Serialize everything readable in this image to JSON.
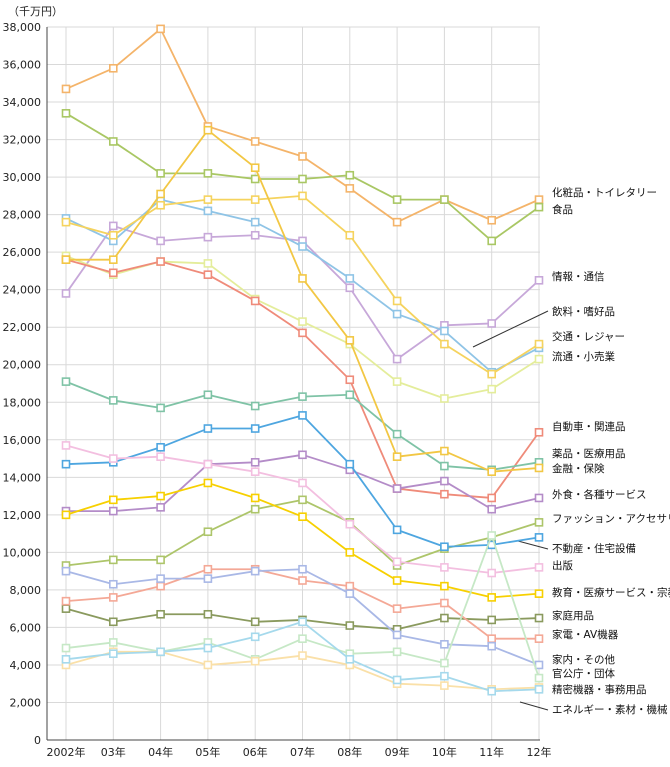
{
  "chart_data": {
    "type": "line",
    "unit_label": "（千万円）",
    "x": [
      "2002年",
      "03年",
      "04年",
      "05年",
      "06年",
      "07年",
      "08年",
      "09年",
      "10年",
      "11年",
      "12年"
    ],
    "ylim": [
      0,
      38000
    ],
    "yticks": [
      0,
      2000,
      4000,
      6000,
      8000,
      10000,
      12000,
      14000,
      16000,
      18000,
      20000,
      22000,
      24000,
      26000,
      28000,
      30000,
      32000,
      34000,
      36000,
      38000
    ],
    "ytick_labels": [
      "0",
      "2,000",
      "4,000",
      "6,000",
      "8,000",
      "10,000",
      "12,000",
      "14,000",
      "16,000",
      "18,000",
      "20,000",
      "22,000",
      "24,000",
      "26,000",
      "28,000",
      "30,000",
      "32,000",
      "34,000",
      "36,000",
      "38,000"
    ],
    "grid": true,
    "legend_placement": "right, inline labels",
    "series": [
      {
        "name": "化粧品・トイレタリー",
        "color": "#f4b46a",
        "values": [
          34700,
          35800,
          37900,
          32700,
          31900,
          31100,
          29400,
          27600,
          28800,
          27700,
          28800
        ]
      },
      {
        "name": "食品",
        "color": "#a9c764",
        "values": [
          33400,
          31900,
          30200,
          30200,
          29900,
          29900,
          30100,
          28800,
          28800,
          26600,
          28400
        ]
      },
      {
        "name": "情報・通信",
        "color": "#c7a8d9",
        "values": [
          23800,
          27400,
          26600,
          26800,
          26900,
          26600,
          24100,
          20300,
          22100,
          22200,
          24500
        ]
      },
      {
        "name": "飲料・嗜好品",
        "color": "#8fc4e6",
        "values": [
          27800,
          26600,
          28800,
          28200,
          27600,
          26300,
          24600,
          22700,
          21800,
          19600,
          20900
        ]
      },
      {
        "name": "交通・レジャー",
        "color": "#f5d35e",
        "values": [
          27600,
          26900,
          28500,
          28800,
          28800,
          29000,
          26900,
          23400,
          21100,
          19500,
          21100
        ]
      },
      {
        "name": "流通・小売業",
        "color": "#e4ed9b",
        "values": [
          25800,
          24800,
          25500,
          25400,
          23500,
          22300,
          21100,
          19100,
          18200,
          18700,
          20300
        ]
      },
      {
        "name": "自動車・関連品",
        "color": "#ef8b7a",
        "values": [
          25600,
          24900,
          25500,
          24800,
          23400,
          21700,
          19200,
          13400,
          13100,
          12900,
          16400
        ]
      },
      {
        "name": "薬品・医療用品",
        "color": "#7fc3a6",
        "values": [
          19100,
          18100,
          17700,
          18400,
          17800,
          18300,
          18400,
          16300,
          14600,
          14400,
          14800
        ]
      },
      {
        "name": "金融・保険",
        "color": "#f2c744",
        "values": [
          25600,
          25600,
          29100,
          32500,
          30500,
          24600,
          21300,
          15100,
          15400,
          14300,
          14500
        ]
      },
      {
        "name": "外食・各種サービス",
        "color": "#b48cc8",
        "values": [
          12200,
          12200,
          12400,
          14700,
          14800,
          15200,
          14400,
          13400,
          13800,
          12300,
          12900
        ]
      },
      {
        "name": "ファッション・アクセサリー",
        "color": "#adc56a",
        "values": [
          9300,
          9600,
          9600,
          11100,
          12300,
          12800,
          11600,
          9300,
          10200,
          10800,
          11600
        ]
      },
      {
        "name": "不動産・住宅設備",
        "color": "#4ea6e0",
        "values": [
          14700,
          14800,
          15600,
          16600,
          16600,
          17300,
          14700,
          11200,
          10300,
          10400,
          10800
        ]
      },
      {
        "name": "出版",
        "color": "#f3bfe0",
        "values": [
          15700,
          15000,
          15100,
          14700,
          14300,
          13700,
          11500,
          9500,
          9200,
          8900,
          9200
        ]
      },
      {
        "name": "教育・医療サービス・宗教",
        "color": "#f7d000",
        "values": [
          12000,
          12800,
          13000,
          13700,
          12900,
          11900,
          10000,
          8500,
          8200,
          7600,
          7800
        ]
      },
      {
        "name": "家庭用品",
        "color": "#8a9a5e",
        "values": [
          7000,
          6300,
          6700,
          6700,
          6300,
          6400,
          6100,
          5900,
          6500,
          6400,
          6500
        ]
      },
      {
        "name": "家電・AV機器",
        "color": "#f4a896",
        "values": [
          7400,
          7600,
          8200,
          9100,
          9100,
          8500,
          8200,
          7000,
          7300,
          5400,
          5400
        ]
      },
      {
        "name": "家内・その他",
        "color": "#a9b8e6",
        "values": [
          9000,
          8300,
          8600,
          8600,
          9000,
          9100,
          7800,
          5600,
          5100,
          5000,
          4000
        ]
      },
      {
        "name": "官公庁・団体",
        "color": "#c6e8c6",
        "values": [
          4900,
          5200,
          4700,
          5200,
          4300,
          5400,
          4600,
          4700,
          4100,
          10900,
          3300
        ]
      },
      {
        "name": "精密機器・事務用品",
        "color": "#fae0a8",
        "values": [
          4000,
          4700,
          4700,
          4000,
          4200,
          4500,
          4000,
          3000,
          2900,
          2700,
          2800
        ]
      },
      {
        "name": "エネルギー・素材・機械",
        "color": "#a5d9ec",
        "values": [
          4300,
          4600,
          4700,
          4900,
          5500,
          6300,
          4300,
          3200,
          3400,
          2600,
          2700
        ]
      }
    ]
  }
}
